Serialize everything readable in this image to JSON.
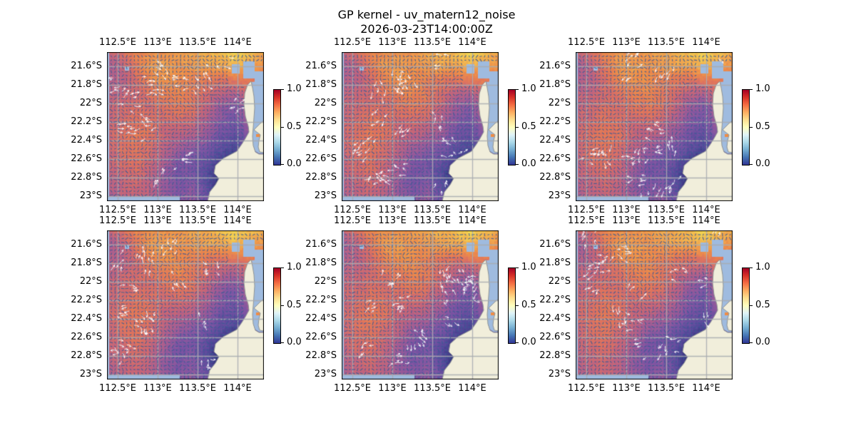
{
  "figure": {
    "title_line1": "GP kernel - uv_matern12_noise",
    "title_line2": "2026-03-23T14:00:00Z"
  },
  "axes": {
    "x_tick_labels": [
      "112.5°E",
      "113°E",
      "113.5°E",
      "114°E"
    ],
    "y_tick_labels": [
      "21.6°S",
      "21.8°S",
      "22°S",
      "22.2°S",
      "22.4°S",
      "22.6°S",
      "22.8°S",
      "23°S"
    ]
  },
  "colorbar": {
    "tick_labels": [
      "1.0",
      "0.5",
      "0.0"
    ],
    "vmin": 0.0,
    "vmax": 1.0,
    "gradient_stops": [
      "#a50026",
      "#d73027",
      "#f46d43",
      "#fdae61",
      "#fee090",
      "#ffffbf",
      "#e0f3f8",
      "#abd9e9",
      "#74add1",
      "#4575b4",
      "#313695"
    ]
  },
  "colors": {
    "background": "#ffffff",
    "ocean": "#9fbbdf",
    "land": "#f1eedb",
    "coastline": "#8f9494",
    "gridline": "#a8acb0",
    "quiver_dot": "#3a5c94",
    "quiver_arrow": "#ffffff",
    "spine": "#000000",
    "lone_data_pixel": "#ee8c45"
  },
  "chart_data": {
    "type": "heatmap",
    "title": "GP kernel - uv_matern12_noise",
    "subtitle": "2026-03-23T14:00:00Z",
    "panel_grid": {
      "rows": 2,
      "cols": 3,
      "count": 6
    },
    "panel_note": "six near-identical spatial field maps of the Exmouth Gulf region (WA); each panel has identical axes and its own 0-1 colorbar; quiver overlay of small dark arrows and white streaks",
    "lon_ticks_deg_e": [
      112.5,
      113.0,
      113.5,
      114.0
    ],
    "lat_ticks_deg_s": [
      21.6,
      21.8,
      22.0,
      22.2,
      22.4,
      22.6,
      22.8,
      23.0
    ],
    "lon_range_deg_e": [
      112.37,
      114.33
    ],
    "lat_range_deg_s": [
      21.45,
      23.03
    ],
    "colorbar_range": [
      0.0,
      1.0
    ],
    "colormap_stops": [
      [
        0.0,
        "#0a2e38"
      ],
      [
        0.09,
        "#1c3170"
      ],
      [
        0.18,
        "#35357f"
      ],
      [
        0.3,
        "#584a9b"
      ],
      [
        0.42,
        "#7e55a3"
      ],
      [
        0.52,
        "#a55d93"
      ],
      [
        0.62,
        "#c76678"
      ],
      [
        0.7,
        "#e0745c"
      ],
      [
        0.78,
        "#ec8a4b"
      ],
      [
        0.86,
        "#f2a94c"
      ],
      [
        0.93,
        "#f4c94e"
      ],
      [
        1.0,
        "#f7e64e"
      ]
    ],
    "value_grid_note": "estimated normalized field values, 12x12, row 0 = north (21.45S), col 0 = west (112.37E)",
    "value_grid": [
      [
        0.62,
        0.68,
        0.76,
        0.8,
        0.8,
        0.82,
        0.85,
        0.87,
        0.9,
        0.96,
        0.9,
        0.86
      ],
      [
        0.52,
        0.6,
        0.72,
        0.82,
        0.83,
        0.8,
        0.82,
        0.84,
        0.84,
        0.88,
        0.84,
        0.8
      ],
      [
        0.56,
        0.58,
        0.66,
        0.76,
        0.8,
        0.78,
        0.75,
        0.72,
        0.7,
        0.72,
        0.74,
        0.7
      ],
      [
        0.6,
        0.62,
        0.65,
        0.7,
        0.74,
        0.77,
        0.72,
        0.66,
        0.6,
        0.56,
        0.64,
        0.6
      ],
      [
        0.62,
        0.64,
        0.67,
        0.66,
        0.7,
        0.72,
        0.7,
        0.62,
        0.5,
        0.44,
        0.55,
        0.55
      ],
      [
        0.63,
        0.66,
        0.7,
        0.68,
        0.65,
        0.67,
        0.64,
        0.55,
        0.45,
        0.4,
        0.5,
        0.5
      ],
      [
        0.64,
        0.68,
        0.71,
        0.7,
        0.62,
        0.6,
        0.57,
        0.5,
        0.4,
        0.35,
        0.45,
        0.45
      ],
      [
        0.63,
        0.69,
        0.71,
        0.67,
        0.6,
        0.52,
        0.48,
        0.42,
        0.34,
        0.27,
        0.35,
        0.4
      ],
      [
        0.62,
        0.67,
        0.69,
        0.64,
        0.55,
        0.44,
        0.4,
        0.36,
        0.26,
        0.16,
        0.22,
        0.3
      ],
      [
        0.6,
        0.64,
        0.67,
        0.61,
        0.5,
        0.4,
        0.42,
        0.31,
        0.16,
        0.07,
        0.12,
        0.25
      ],
      [
        0.57,
        0.61,
        0.64,
        0.59,
        0.48,
        0.42,
        0.45,
        0.34,
        0.12,
        0.04,
        0.06,
        0.22
      ],
      [
        0.54,
        0.59,
        0.62,
        0.57,
        0.5,
        0.44,
        0.48,
        0.38,
        0.15,
        0.05,
        0.05,
        0.2
      ]
    ]
  }
}
